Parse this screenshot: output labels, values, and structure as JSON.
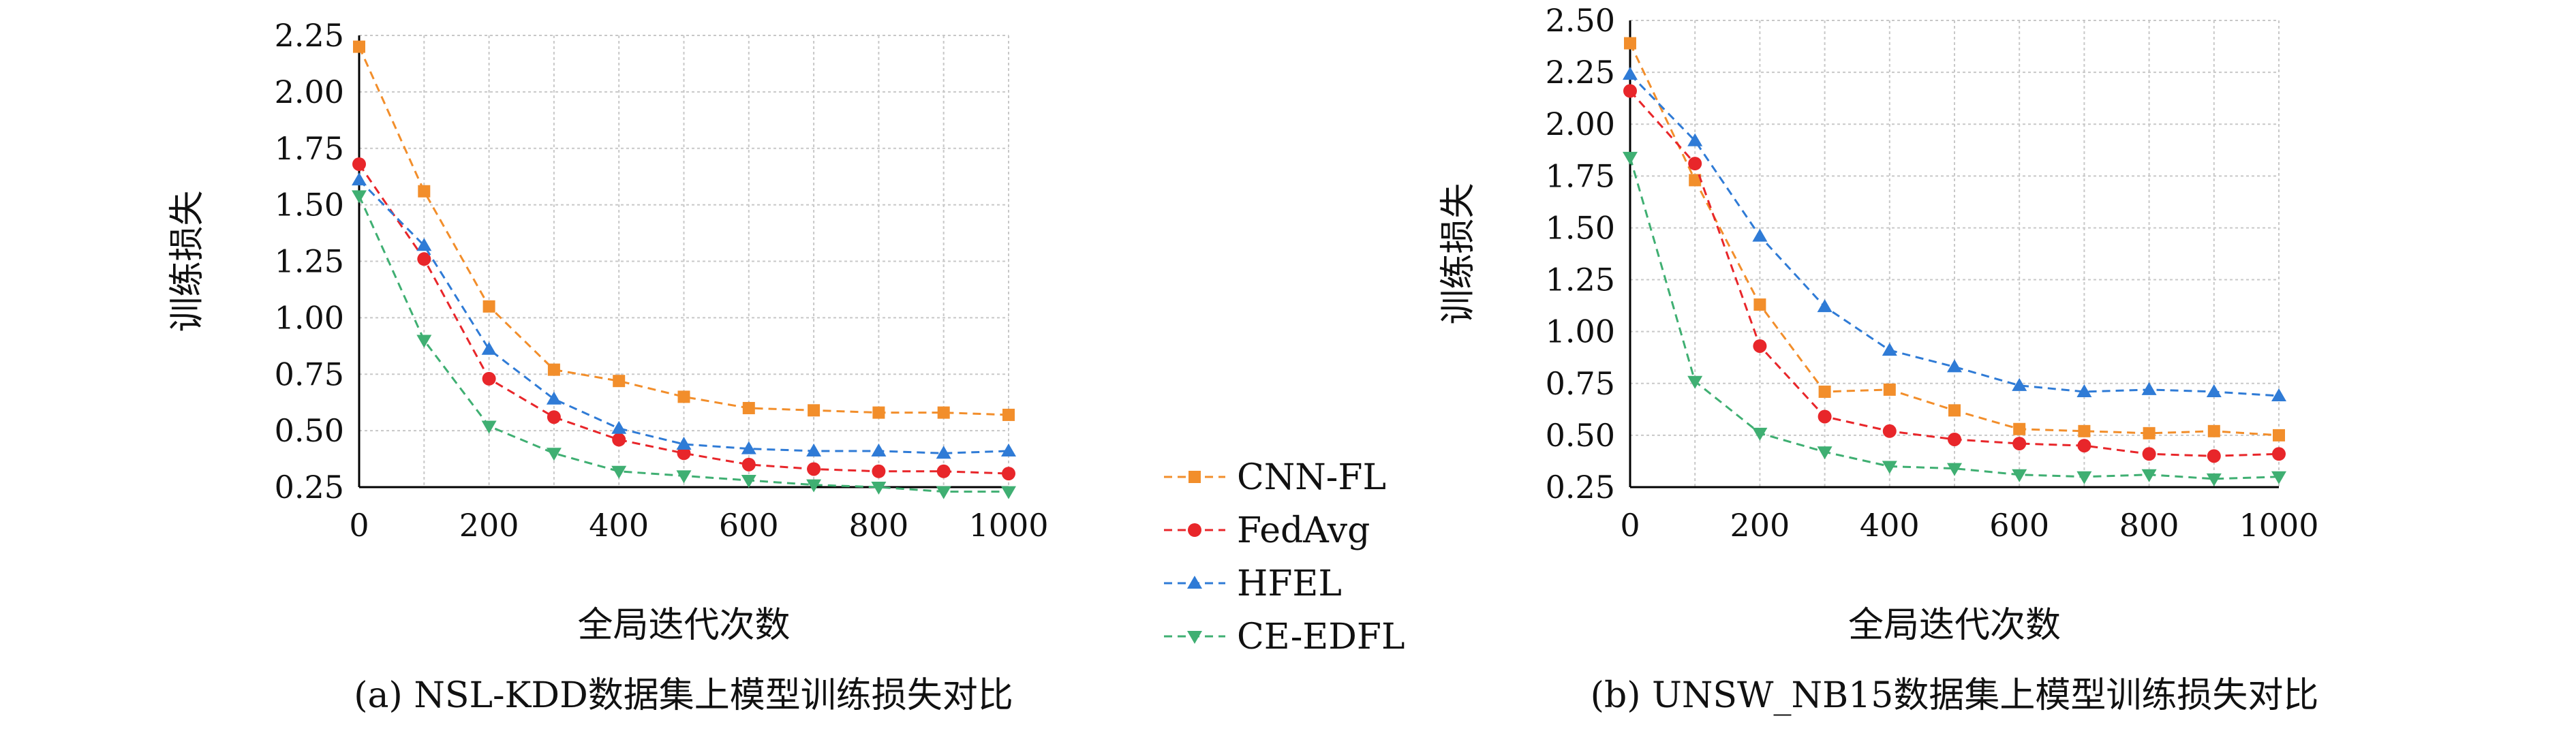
{
  "legend": {
    "items": [
      {
        "label": "CNN-FL",
        "color": "#F28E2B",
        "marker": "square"
      },
      {
        "label": "FedAvg",
        "color": "#E8262A",
        "marker": "circle"
      },
      {
        "label": "HFEL",
        "color": "#2F7BD6",
        "marker": "triangle-up"
      },
      {
        "label": "CE-EDFL",
        "color": "#3FAF72",
        "marker": "triangle-down"
      }
    ]
  },
  "chart_data": [
    {
      "type": "line",
      "caption": "(a) NSL-KDD数据集上模型训练损失对比",
      "xlabel": "全局迭代次数",
      "ylabel": "训练损失",
      "x": [
        0,
        100,
        200,
        300,
        400,
        500,
        600,
        700,
        800,
        900,
        1000
      ],
      "xlim": [
        0,
        1000
      ],
      "ylim": [
        0.25,
        2.25
      ],
      "xticks": [
        0,
        200,
        400,
        600,
        800,
        1000
      ],
      "yticks": [
        0.25,
        0.5,
        0.75,
        1.0,
        1.25,
        1.5,
        1.75,
        2.0,
        2.25
      ],
      "ytick_labels": [
        "0.25",
        "0.50",
        "0.75",
        "1.00",
        "1.25",
        "1.50",
        "1.75",
        "2.00",
        "2.25"
      ],
      "grid": true,
      "series": [
        {
          "name": "CNN-FL",
          "values": [
            2.2,
            1.56,
            1.05,
            0.77,
            0.72,
            0.65,
            0.6,
            0.59,
            0.58,
            0.58,
            0.57
          ]
        },
        {
          "name": "FedAvg",
          "values": [
            1.68,
            1.26,
            0.73,
            0.56,
            0.46,
            0.4,
            0.35,
            0.33,
            0.32,
            0.32,
            0.31
          ]
        },
        {
          "name": "HFEL",
          "values": [
            1.61,
            1.32,
            0.86,
            0.64,
            0.51,
            0.44,
            0.42,
            0.41,
            0.41,
            0.4,
            0.41
          ]
        },
        {
          "name": "CE-EDFL",
          "values": [
            1.54,
            0.9,
            0.52,
            0.4,
            0.32,
            0.3,
            0.28,
            0.26,
            0.25,
            0.23,
            0.23
          ]
        }
      ]
    },
    {
      "type": "line",
      "caption": "(b) UNSW_NB15数据集上模型训练损失对比",
      "xlabel": "全局迭代次数",
      "ylabel": "训练损失",
      "x": [
        0,
        100,
        200,
        300,
        400,
        500,
        600,
        700,
        800,
        900,
        1000
      ],
      "xlim": [
        0,
        1000
      ],
      "ylim": [
        0.25,
        2.5
      ],
      "xticks": [
        0,
        200,
        400,
        600,
        800,
        1000
      ],
      "yticks": [
        0.25,
        0.5,
        0.75,
        1.0,
        1.25,
        1.5,
        1.75,
        2.0,
        2.25,
        2.5
      ],
      "ytick_labels": [
        "0.25",
        "0.50",
        "0.75",
        "1.00",
        "1.25",
        "1.50",
        "1.75",
        "2.00",
        "2.25",
        "2.50"
      ],
      "grid": true,
      "series": [
        {
          "name": "CNN-FL",
          "values": [
            2.39,
            1.73,
            1.13,
            0.71,
            0.72,
            0.62,
            0.53,
            0.52,
            0.51,
            0.52,
            0.5
          ]
        },
        {
          "name": "FedAvg",
          "values": [
            2.16,
            1.81,
            0.93,
            0.59,
            0.52,
            0.48,
            0.46,
            0.45,
            0.41,
            0.4,
            0.41
          ]
        },
        {
          "name": "HFEL",
          "values": [
            2.24,
            1.92,
            1.46,
            1.12,
            0.91,
            0.83,
            0.74,
            0.71,
            0.72,
            0.71,
            0.69
          ]
        },
        {
          "name": "CE-EDFL",
          "values": [
            1.84,
            0.76,
            0.51,
            0.42,
            0.35,
            0.34,
            0.31,
            0.3,
            0.31,
            0.29,
            0.3
          ]
        }
      ]
    }
  ]
}
